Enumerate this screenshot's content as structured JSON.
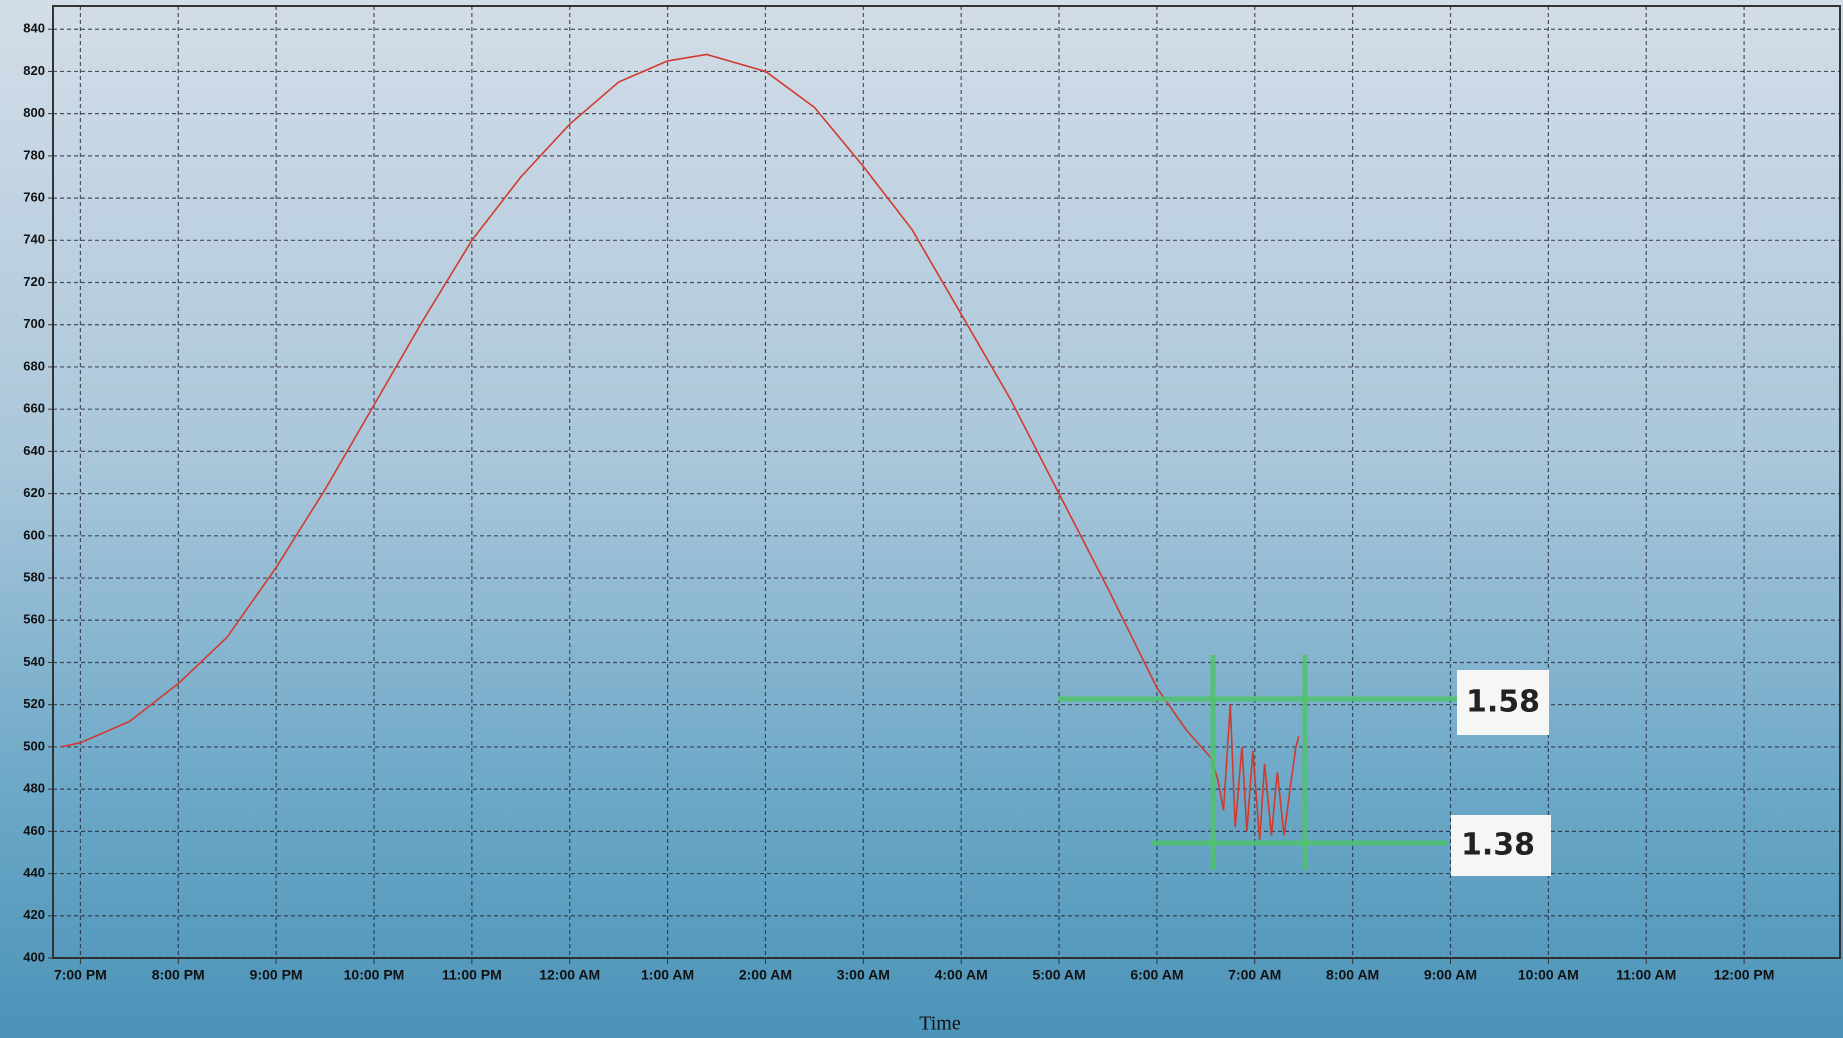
{
  "chart_data": {
    "type": "line",
    "x_label": "Time",
    "xlim": [
      -0.28,
      17.98
    ],
    "ylim": [
      400,
      851
    ],
    "xticks": [
      {
        "value": 0,
        "label": "7:00 PM"
      },
      {
        "value": 1,
        "label": "8:00 PM"
      },
      {
        "value": 2,
        "label": "9:00 PM"
      },
      {
        "value": 3,
        "label": "10:00 PM"
      },
      {
        "value": 4,
        "label": "11:00 PM"
      },
      {
        "value": 5,
        "label": "12:00 AM"
      },
      {
        "value": 6,
        "label": "1:00 AM"
      },
      {
        "value": 7,
        "label": "2:00 AM"
      },
      {
        "value": 8,
        "label": "3:00 AM"
      },
      {
        "value": 9,
        "label": "4:00 AM"
      },
      {
        "value": 10,
        "label": "5:00 AM"
      },
      {
        "value": 11,
        "label": "6:00 AM"
      },
      {
        "value": 12,
        "label": "7:00 AM"
      },
      {
        "value": 13,
        "label": "8:00 AM"
      },
      {
        "value": 14,
        "label": "9:00 AM"
      },
      {
        "value": 15,
        "label": "10:00 AM"
      },
      {
        "value": 16,
        "label": "11:00 AM"
      },
      {
        "value": 17,
        "label": "12:00 PM"
      }
    ],
    "yticks": [
      400,
      420,
      440,
      460,
      480,
      500,
      520,
      540,
      560,
      580,
      600,
      620,
      640,
      660,
      680,
      700,
      720,
      740,
      760,
      780,
      800,
      820,
      840
    ],
    "grid": true,
    "series": [
      {
        "color": "#d23a2e",
        "x": [
          -0.2,
          0,
          0.5,
          1,
          1.5,
          2,
          2.5,
          3,
          3.5,
          4,
          4.5,
          5,
          5.5,
          6,
          6.4,
          7,
          7.5,
          8,
          8.5,
          9,
          9.5,
          10,
          10.5,
          11,
          11.3,
          11.55,
          11.62,
          11.68,
          11.75,
          11.8,
          11.87,
          11.92,
          11.98,
          12.05,
          12.1,
          12.17,
          12.23,
          12.3,
          12.36,
          12.42,
          12.45
        ],
        "values": [
          500,
          502,
          512,
          530,
          552,
          585,
          622,
          662,
          702,
          740,
          770,
          795,
          815,
          825,
          828,
          820,
          803,
          775,
          745,
          705,
          665,
          620,
          575,
          528,
          508,
          495,
          485,
          470,
          520,
          462,
          500,
          460,
          498,
          456,
          492,
          458,
          488,
          458,
          480,
          500,
          505
        ]
      }
    ],
    "annotations": [
      "1.58",
      "1.38"
    ]
  }
}
